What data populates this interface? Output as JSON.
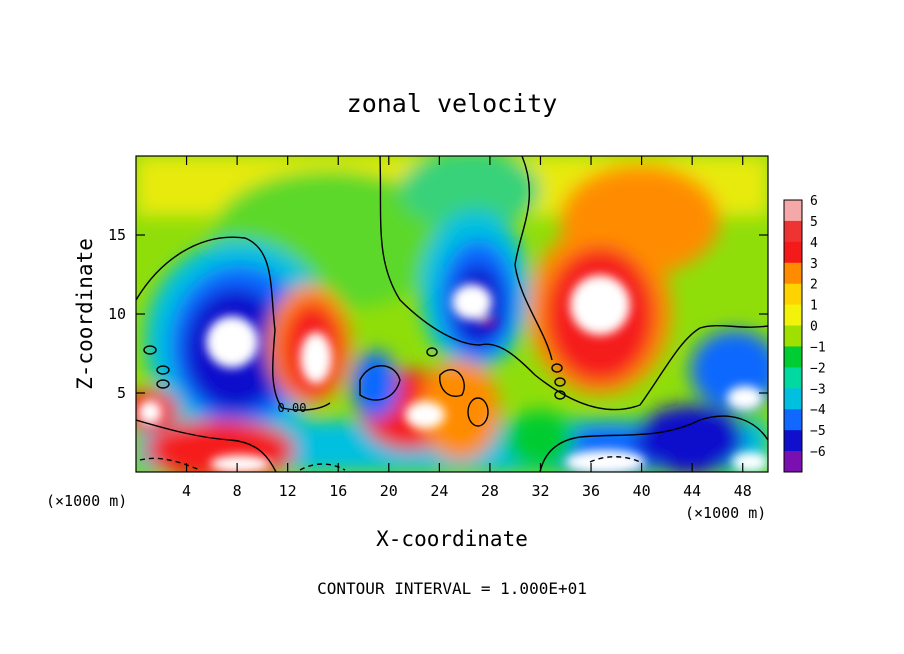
{
  "chart_data": {
    "type": "heatmap",
    "title": "zonal velocity",
    "xlabel": "X-coordinate",
    "ylabel": "Z-coordinate",
    "x_unit_left": "(×1000 m)",
    "x_unit_right": "(×1000 m)",
    "footer": "CONTOUR INTERVAL = 1.000E+01",
    "xlim": [
      0,
      50
    ],
    "ylim": [
      0,
      20
    ],
    "xticks": [
      4,
      8,
      12,
      16,
      20,
      24,
      28,
      32,
      36,
      40,
      44,
      48
    ],
    "xtick_labels": [
      "4",
      "8",
      "12",
      "16",
      "20",
      "24",
      "28",
      "32",
      "36",
      "40",
      "44",
      "48"
    ],
    "yticks": [
      5,
      10,
      15
    ],
    "ytick_labels": [
      "5",
      "10",
      "15"
    ],
    "colorbar": {
      "values": [
        6,
        5,
        4,
        3,
        2,
        1,
        0,
        -1,
        -2,
        -3,
        -4,
        -5,
        -6
      ],
      "labels": [
        "6",
        "5",
        "4",
        "3",
        "2",
        "1",
        "0",
        "−1",
        "−2",
        "−3",
        "−4",
        "−5",
        "−6"
      ],
      "colors": [
        "#f4a8a8",
        "#ee3333",
        "#f51a1a",
        "#ff8c00",
        "#ffd300",
        "#f2f20a",
        "#a0e000",
        "#00cc33",
        "#00d9a0",
        "#00c0e0",
        "#1068ff",
        "#1010cc",
        "#7a10b0"
      ]
    },
    "features": [
      {
        "kind": "negative-max",
        "cx": 8,
        "cz": 8.5,
        "value": -6
      },
      {
        "kind": "positive-max",
        "cx": 14,
        "cz": 8,
        "value": 6
      },
      {
        "kind": "negative-max",
        "cx": 27,
        "cz": 10.5,
        "value": -6
      },
      {
        "kind": "positive-max",
        "cx": 37,
        "cz": 10.5,
        "value": 6
      },
      {
        "kind": "positive-lobe",
        "cx": 40,
        "cz": 17,
        "value": 3
      },
      {
        "kind": "positive-max",
        "cx": 22,
        "cz": 4.5,
        "value": 6
      },
      {
        "kind": "positive-max",
        "cx": 37,
        "cz": 1.2,
        "value": 6
      },
      {
        "kind": "negative-lobe",
        "cx": 46,
        "cz": 3,
        "value": -4
      }
    ]
  }
}
